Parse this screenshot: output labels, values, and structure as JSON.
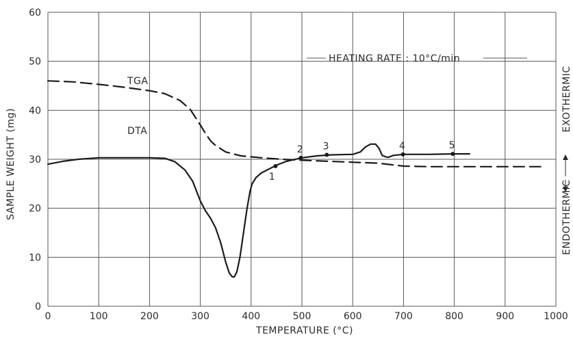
{
  "chart_data": {
    "type": "line",
    "xlabel": "TEMPERATURE (°C)",
    "ylabel": "SAMPLE WEIGHT (mg)",
    "xlim": [
      0,
      1000
    ],
    "ylim": [
      0,
      60
    ],
    "x_ticks": [
      "0",
      "100",
      "200",
      "300",
      "400",
      "500",
      "600",
      "700",
      "800",
      "900",
      "1000"
    ],
    "y_ticks": [
      "0",
      "10",
      "20",
      "30",
      "40",
      "50",
      "60"
    ],
    "grid": true,
    "annotation": "HEATING RATE : 10°C/min",
    "right_axis": {
      "exothermic": "EXOTHERMIC",
      "endothermic": "ENDOTHERMIC"
    },
    "series": [
      {
        "name": "TGA",
        "style": "dashed",
        "color": "#1a1a1a",
        "x": [
          0,
          50,
          100,
          150,
          200,
          230,
          260,
          280,
          290,
          300,
          310,
          320,
          330,
          350,
          380,
          420,
          460,
          500,
          550,
          600,
          650,
          700,
          750,
          800,
          850,
          900,
          950,
          970
        ],
        "y": [
          46,
          45.8,
          45.3,
          44.7,
          44.0,
          43.4,
          42.0,
          40.2,
          38.6,
          37.0,
          35.3,
          33.8,
          32.8,
          31.5,
          30.7,
          30.3,
          30.0,
          29.8,
          29.6,
          29.4,
          29.2,
          28.6,
          28.5,
          28.5,
          28.5,
          28.5,
          28.5,
          28.5
        ]
      },
      {
        "name": "DTA",
        "style": "solid",
        "color": "#1a1a1a",
        "x": [
          0,
          30,
          60,
          100,
          150,
          200,
          230,
          250,
          270,
          285,
          300,
          310,
          320,
          330,
          340,
          350,
          357,
          363,
          367,
          372,
          378,
          385,
          392,
          398,
          402,
          410,
          420,
          435,
          450,
          470,
          500,
          530,
          560,
          600,
          615,
          625,
          635,
          645,
          652,
          658,
          665,
          670,
          680,
          700,
          750,
          800,
          830
        ],
        "y": [
          29,
          29.6,
          30.0,
          30.3,
          30.3,
          30.3,
          30.2,
          29.5,
          27.8,
          25.5,
          21.5,
          19.5,
          18.0,
          16.0,
          13.0,
          9.0,
          6.8,
          6.0,
          6.0,
          7.0,
          10.0,
          15.0,
          20.0,
          23.5,
          25.0,
          26.3,
          27.2,
          28.0,
          28.8,
          29.6,
          30.3,
          30.7,
          30.9,
          31.0,
          31.5,
          32.5,
          33.1,
          33.1,
          32.2,
          30.8,
          30.5,
          30.4,
          30.8,
          31.0,
          31.0,
          31.1,
          31.1
        ]
      }
    ],
    "points": [
      {
        "label": "1",
        "x": 448,
        "y": 28.6
      },
      {
        "label": "2",
        "x": 498,
        "y": 30.3
      },
      {
        "label": "3",
        "x": 549,
        "y": 30.9
      },
      {
        "label": "4",
        "x": 699,
        "y": 31.0
      },
      {
        "label": "5",
        "x": 797,
        "y": 31.1
      }
    ],
    "series_labels": [
      "TGA",
      "DTA"
    ]
  }
}
